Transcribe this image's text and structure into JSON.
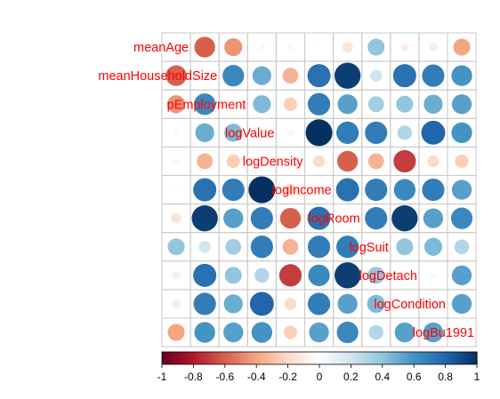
{
  "chart_data": {
    "type": "correlation-matrix",
    "method": "circle",
    "variables": [
      "meanAge",
      "meanHouseholdSize",
      "pEmployment",
      "logValue",
      "logDensity",
      "logIncome",
      "logRoom",
      "logSuit",
      "logDetach",
      "logCondition",
      "logBu1991"
    ],
    "matrix": [
      [
        1.0,
        -0.6,
        -0.45,
        0.05,
        -0.05,
        -0.02,
        -0.15,
        0.4,
        -0.1,
        0.1,
        -0.4
      ],
      [
        -0.6,
        1.0,
        0.65,
        0.5,
        -0.35,
        0.75,
        0.95,
        0.2,
        0.75,
        0.7,
        0.6
      ],
      [
        -0.45,
        0.65,
        1.0,
        0.45,
        -0.25,
        0.7,
        0.55,
        0.35,
        0.4,
        0.5,
        0.55
      ],
      [
        0.05,
        0.5,
        0.45,
        1.0,
        0.05,
        1.0,
        0.7,
        0.7,
        0.3,
        0.8,
        0.6
      ],
      [
        -0.05,
        -0.35,
        -0.25,
        0.05,
        1.0,
        -0.2,
        -0.6,
        -0.35,
        -0.7,
        -0.2,
        -0.25
      ],
      [
        -0.02,
        0.75,
        0.7,
        1.0,
        -0.2,
        1.0,
        0.75,
        0.7,
        0.65,
        0.7,
        0.55
      ],
      [
        -0.15,
        0.95,
        0.55,
        0.7,
        -0.6,
        0.75,
        1.0,
        0.7,
        0.95,
        0.55,
        0.65
      ],
      [
        0.4,
        0.2,
        0.35,
        0.7,
        -0.35,
        0.7,
        0.7,
        1.0,
        0.4,
        0.45,
        0.3
      ],
      [
        -0.1,
        0.75,
        0.4,
        0.3,
        -0.7,
        0.65,
        0.95,
        0.4,
        1.0,
        0.05,
        0.55
      ],
      [
        0.1,
        0.7,
        0.5,
        0.8,
        -0.2,
        0.7,
        0.55,
        0.45,
        0.05,
        1.0,
        0.55
      ],
      [
        -0.4,
        0.6,
        0.55,
        0.6,
        -0.25,
        0.55,
        0.65,
        0.3,
        0.55,
        0.55,
        1.0
      ]
    ],
    "colorbar": {
      "range": [
        -1,
        1
      ],
      "tick_labels": [
        "-1",
        "-0.8",
        "-0.6",
        "-0.4",
        "-0.2",
        "0",
        "0.2",
        "0.4",
        "0.6",
        "0.8",
        "1"
      ]
    },
    "grid": true,
    "label_color": "#ff0000",
    "palette": [
      "#67001f",
      "#b2182b",
      "#d6604d",
      "#f4a582",
      "#fddbc7",
      "#ffffff",
      "#d1e5f0",
      "#92c5de",
      "#4393c3",
      "#2166ac",
      "#053061"
    ]
  }
}
